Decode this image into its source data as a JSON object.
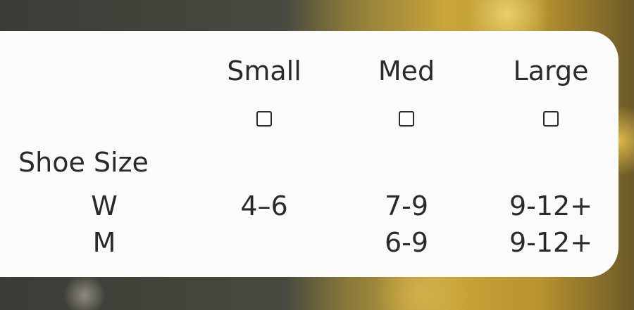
{
  "columns": [
    "Small",
    "Med",
    "Large"
  ],
  "row_header": "Shoe Size",
  "rows": [
    {
      "label": "W",
      "values": [
        "4–6",
        "7-9",
        "9-12+"
      ]
    },
    {
      "label": "M",
      "values": [
        "",
        "6-9",
        "9-12+"
      ]
    }
  ],
  "colors": {
    "panel": "#fbfbf9",
    "text": "#2a2a2a"
  }
}
